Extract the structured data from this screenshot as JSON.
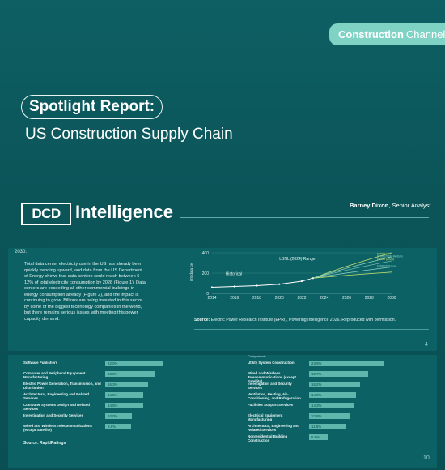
{
  "header": {
    "channel_bold": "Construction",
    "channel_rest": "Channel"
  },
  "report": {
    "badge": "Spotlight Report:",
    "title": "US Construction Supply Chain"
  },
  "brand": {
    "logo_text": "DCD",
    "logo_word": "Intelligence",
    "author_name": "Barney Dixon",
    "author_role": ", Senior Analyst"
  },
  "page4": {
    "year": "2030.",
    "body": "Total data center electricity use in the US has already been quickly trending upward, and data from the US Department of Energy shows that data centers could reach between 6 - 12% of total electricity consumption by 2028 (Figure 1). Data centers are exceeding all other commercial buildings in energy consumption already (Figure 2), and the impact is continuing to grow. Billions are being invested in this sector by some of the biggest technology companies in the world, but there remains serious issues with meeting this power capacity demand.",
    "source_bold": "Source:",
    "source_text": " Electric Power Research Institute (EPRI), Powering Intelligence 2026. Reproduced with permission.",
    "page_number": "4"
  },
  "chart_data": {
    "type": "line",
    "ylabel": "US data ce",
    "x_ticks": [
      "2014",
      "2016",
      "2018",
      "2020",
      "2022",
      "2024",
      "2026",
      "2028",
      "2030"
    ],
    "y_ticks": [
      "0",
      "200",
      "400"
    ],
    "ylim": [
      0,
      400
    ],
    "annotations": [
      "LBNL (2024) Range",
      "Historical"
    ],
    "legend": [
      "EPRI Low",
      "EPRI (2024) Medium",
      "EBIOT (2028)",
      "EPRI 2028 Low"
    ],
    "series": [
      {
        "name": "Historical",
        "x": [
          2014,
          2016,
          2018,
          2020,
          2022,
          2023
        ],
        "y": [
          60,
          68,
          76,
          90,
          120,
          150
        ]
      }
    ],
    "colors": {
      "historical": "#ffffff",
      "epri_low": "#c8e36a",
      "epri_med": "#8fd6c6",
      "range": "#6fb9b0"
    }
  },
  "page10": {
    "left_rows": [
      {
        "label": "Software Publishers",
        "value": "22.0%",
        "pct": 22.0
      },
      {
        "label": "Computer and Peripheral Equipment Manufacturing",
        "value": "18.8%",
        "pct": 18.8
      },
      {
        "label": "Electric Power Generation, Transmission, and Distribution",
        "value": "16.3%",
        "pct": 16.3
      },
      {
        "label": "Architectural, Engineering and Related Services",
        "value": "14.5%",
        "pct": 14.5
      },
      {
        "label": "Computer Systems Design and Related Services",
        "value": "14.5%",
        "pct": 14.5
      },
      {
        "label": "Investigation and Security Services",
        "value": "10.0%",
        "pct": 10.0
      },
      {
        "label": "Wired and Wireless Telecommunications (except Satellite)",
        "value": "9.8%",
        "pct": 9.8
      }
    ],
    "right_rows": [
      {
        "label": "Utility System Construction",
        "value": "23.6%",
        "pct": 23.6
      },
      {
        "label": "Wired and Wireless Telecommunications (except Satellite)",
        "value": "18.7%",
        "pct": 18.7
      },
      {
        "label": "Investigation and Security Services",
        "value": "16.2%",
        "pct": 16.2
      },
      {
        "label": "Ventilation, Heating, Air-Conditioning, and Refrigeration",
        "value": "14.9%",
        "pct": 14.9
      },
      {
        "label": "Facilities Support Services",
        "value": "14.3%",
        "pct": 14.3
      },
      {
        "label": "Electrical Equipment Manufacturing",
        "value": "12.8%",
        "pct": 12.8
      },
      {
        "label": "Architectural, Engineering and Related Services",
        "value": "11.8%",
        "pct": 11.8
      },
      {
        "label": "Nonresidential Building Construction",
        "value": "5.9%",
        "pct": 5.9
      }
    ],
    "cut_top_label": "Components",
    "source": "Source: RapidRatings",
    "page_number": "10"
  }
}
